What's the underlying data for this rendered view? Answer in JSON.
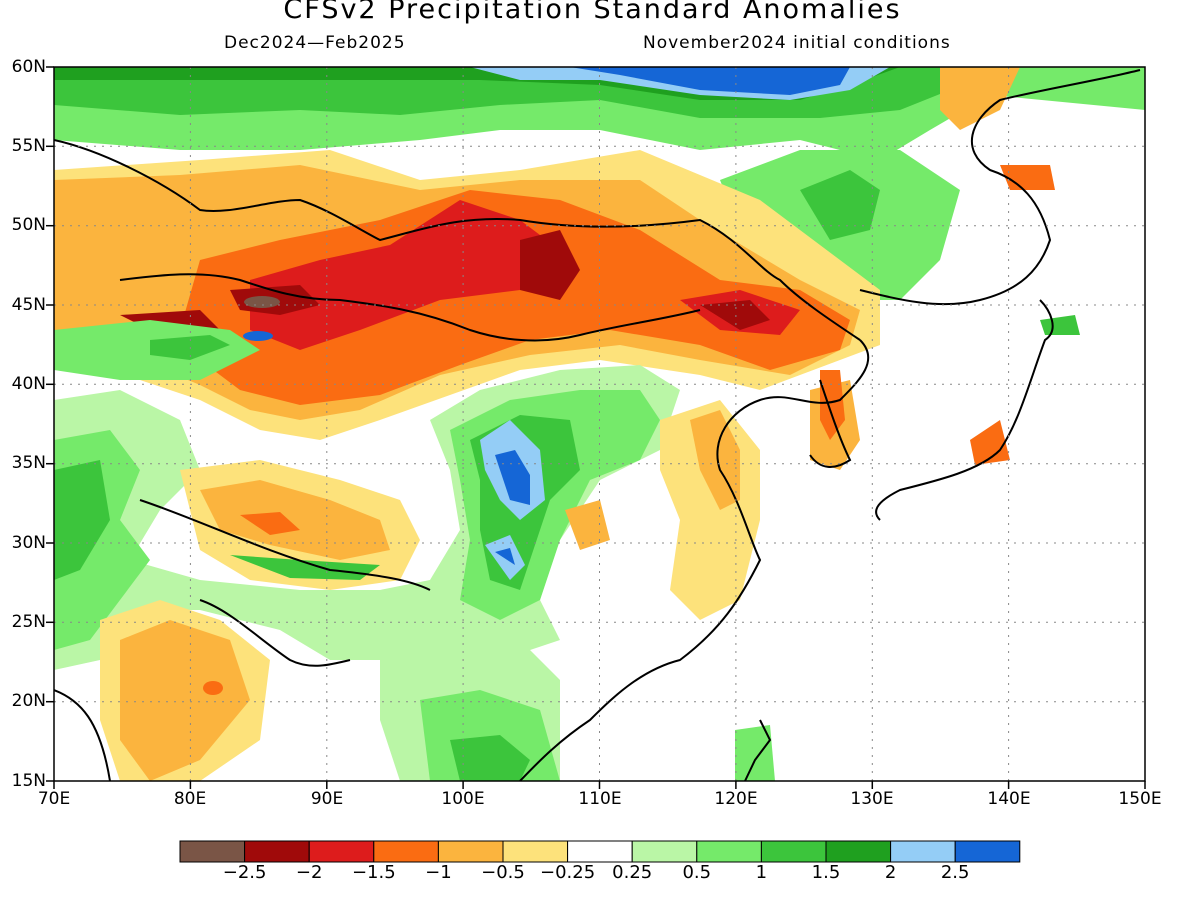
{
  "title": "CFSv2 Precipitation Standard Anomalies",
  "subtitle_left": "Dec2024—Feb2025",
  "subtitle_right": "November2024 initial conditions",
  "lat_labels": [
    "60N",
    "55N",
    "50N",
    "45N",
    "40N",
    "35N",
    "30N",
    "25N",
    "20N",
    "15N"
  ],
  "lon_labels": [
    "70E",
    "80E",
    "90E",
    "100E",
    "110E",
    "120E",
    "130E",
    "140E",
    "150E"
  ],
  "colorbar": {
    "colors": [
      "#7a5546",
      "#a00a0a",
      "#dd1c1c",
      "#fa6c12",
      "#fbb43e",
      "#fde27b",
      "#ffffff",
      "#baf6a6",
      "#75ea6a",
      "#3cc53c",
      "#1fa01f",
      "#94cdf6",
      "#1566d6"
    ],
    "labels": [
      "−2.5",
      "−2",
      "−1.5",
      "−1",
      "−0.5",
      "−0.25",
      "0.25",
      "0.5",
      "1",
      "1.5",
      "2",
      "2.5"
    ]
  }
}
